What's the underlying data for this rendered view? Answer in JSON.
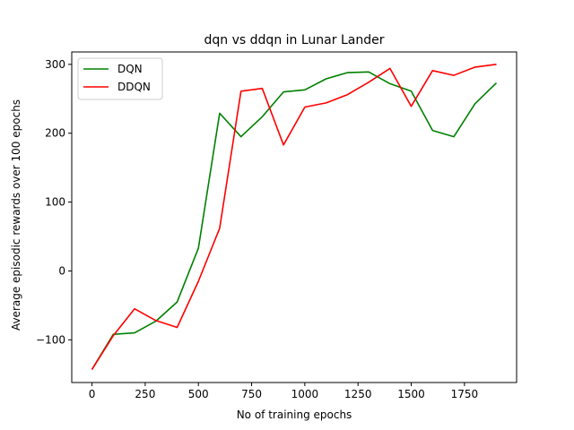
{
  "chart_data": {
    "type": "line",
    "title": "dqn vs ddqn in Lunar Lander",
    "xlabel": "No of training epochs",
    "ylabel": "Average episodic rewards over 100 epochs",
    "xlim": [
      -95,
      1995
    ],
    "ylim": [
      -162,
      318
    ],
    "xticks": [
      0,
      250,
      500,
      750,
      1000,
      1250,
      1500,
      1750
    ],
    "xtick_labels": [
      "0",
      "250",
      "500",
      "750",
      "1000",
      "1250",
      "1500",
      "1750"
    ],
    "yticks": [
      -100,
      0,
      100,
      200,
      300
    ],
    "ytick_labels": [
      "−100",
      "0",
      "100",
      "200",
      "300"
    ],
    "grid": false,
    "legend_position": "top-left",
    "x": [
      0,
      100,
      200,
      300,
      400,
      500,
      600,
      700,
      800,
      900,
      1000,
      1100,
      1200,
      1300,
      1400,
      1500,
      1600,
      1700,
      1800,
      1900
    ],
    "series": [
      {
        "name": "DQN",
        "color": "#008000",
        "values": [
          -143,
          -92,
          -90,
          -73,
          -45,
          33,
          229,
          195,
          224,
          260,
          263,
          279,
          288,
          289,
          272,
          261,
          204,
          195,
          243,
          273
        ]
      },
      {
        "name": "DDQN",
        "color": "#ff0000",
        "values": [
          -143,
          -94,
          -55,
          -72,
          -82,
          -15,
          62,
          261,
          265,
          183,
          238,
          244,
          256,
          274,
          294,
          239,
          291,
          284,
          296,
          300
        ]
      }
    ]
  }
}
